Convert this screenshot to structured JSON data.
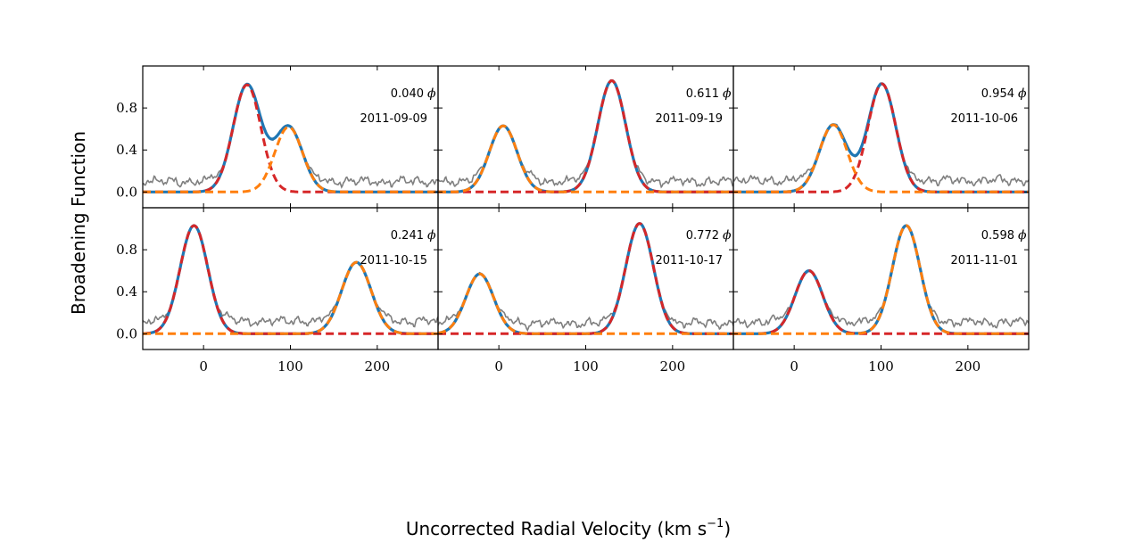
{
  "figure": {
    "ylabel": "Broadening Function",
    "xlabel": "Uncorrected Radial Velocity (km s",
    "xlabel_sup": "−1",
    "xlabel_close": ")"
  },
  "chart_data": {
    "type": "line",
    "rows": 2,
    "cols": 3,
    "xlim": [
      -70,
      270
    ],
    "ylim": [
      -0.15,
      1.2
    ],
    "xticks": [
      0,
      100,
      200
    ],
    "yticks": [
      0.0,
      0.4,
      0.8
    ],
    "xtick_labels": [
      "0",
      "100",
      "200"
    ],
    "ytick_labels": [
      "0.0",
      "0.4",
      "0.8"
    ],
    "phase_symbol": "ϕ",
    "colors": {
      "observed": "#7f7f7f",
      "fit_total": "#1f77b4",
      "component_1": "#d62728",
      "component_2": "#ff7f0e"
    },
    "panels": [
      {
        "phase": "0.040",
        "date": "2011-09-09",
        "noise_level": 0.1,
        "components": [
          {
            "center": 50,
            "amplitude": 1.02,
            "width": 16
          },
          {
            "center": 98,
            "amplitude": 0.62,
            "width": 16
          }
        ]
      },
      {
        "phase": "0.611",
        "date": "2011-09-19",
        "noise_level": 0.1,
        "components": [
          {
            "center": 130,
            "amplitude": 1.06,
            "width": 16
          },
          {
            "center": 5,
            "amplitude": 0.63,
            "width": 16
          }
        ]
      },
      {
        "phase": "0.954",
        "date": "2011-10-06",
        "noise_level": 0.11,
        "components": [
          {
            "center": 101,
            "amplitude": 1.03,
            "width": 16
          },
          {
            "center": 45,
            "amplitude": 0.64,
            "width": 16
          }
        ]
      },
      {
        "phase": "0.241",
        "date": "2011-10-15",
        "noise_level": 0.12,
        "components": [
          {
            "center": -11,
            "amplitude": 1.03,
            "width": 16
          },
          {
            "center": 176,
            "amplitude": 0.68,
            "width": 17
          }
        ]
      },
      {
        "phase": "0.772",
        "date": "2011-10-17",
        "noise_level": 0.1,
        "components": [
          {
            "center": 162,
            "amplitude": 1.05,
            "width": 16
          },
          {
            "center": -22,
            "amplitude": 0.57,
            "width": 16
          }
        ]
      },
      {
        "phase": "0.598",
        "date": "2011-11-01",
        "noise_level": 0.11,
        "components": [
          {
            "center": 17,
            "amplitude": 0.6,
            "width": 16
          },
          {
            "center": 129,
            "amplitude": 1.03,
            "width": 16
          }
        ]
      }
    ]
  }
}
